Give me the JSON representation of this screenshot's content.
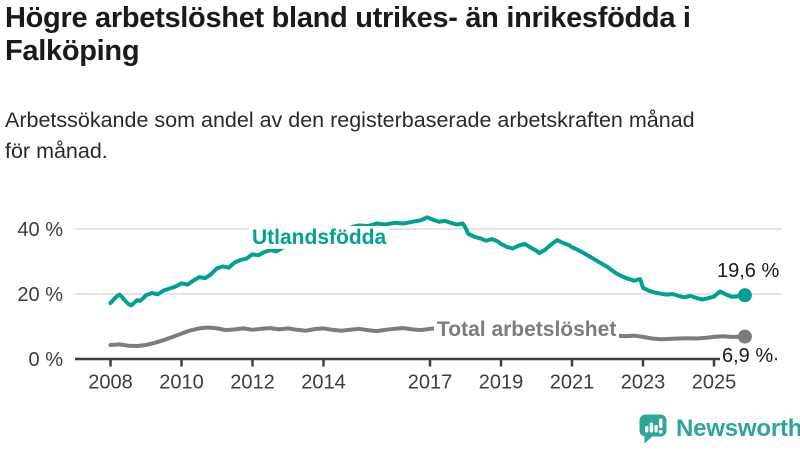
{
  "header": {
    "title": "Högre arbetslöshet bland utrikes- än inrikesfödda i Falköping",
    "title_lines": [
      "Högre arbetslöshet bland utrikes- än inrikesfödda i",
      "Falköping"
    ],
    "subtitle": "Arbetssökande som andel av den registerbaserade arbetskraften månad för månad.",
    "subtitle_lines": [
      "Arbetssökande som andel av den registerbaserade arbetskraften månad",
      "för månad."
    ]
  },
  "colors": {
    "teal": "#00a093",
    "gray": "#7c7c7c",
    "axis": "#3d3d3d",
    "gridline": "#dcdcdc",
    "tick_text": "#3d3d3d",
    "brand_teal": "#2da59b"
  },
  "chart_data": {
    "type": "line",
    "unit": "%",
    "grid": "horizontal-only",
    "x_axis": {
      "ticks": [
        2008,
        2010,
        2012,
        2014,
        2017,
        2019,
        2021,
        2023,
        2025
      ],
      "range": [
        2008,
        2025.87
      ]
    },
    "y_axis": {
      "tick_values": [
        0,
        20,
        40
      ],
      "tick_labels": [
        "0 %",
        "20 %",
        "40 %"
      ],
      "gridlines": [
        20,
        40
      ],
      "range": [
        0,
        45
      ]
    },
    "series": [
      {
        "key": "utlandsfodda",
        "name": "Utlandsfödda",
        "color": "#00a093",
        "end_label": "19,6 %",
        "end_value": 19.6,
        "points": [
          [
            2008.0,
            17.2
          ],
          [
            2008.08,
            18.2
          ],
          [
            2008.17,
            19.2
          ],
          [
            2008.25,
            19.8
          ],
          [
            2008.33,
            19.0
          ],
          [
            2008.42,
            17.8
          ],
          [
            2008.5,
            17.0
          ],
          [
            2008.58,
            16.5
          ],
          [
            2008.67,
            17.3
          ],
          [
            2008.75,
            18.1
          ],
          [
            2008.83,
            17.9
          ],
          [
            2008.92,
            18.7
          ],
          [
            2009.0,
            19.6
          ],
          [
            2009.17,
            20.3
          ],
          [
            2009.33,
            19.9
          ],
          [
            2009.5,
            21.1
          ],
          [
            2009.67,
            21.7
          ],
          [
            2009.83,
            22.3
          ],
          [
            2010.0,
            23.3
          ],
          [
            2010.17,
            22.9
          ],
          [
            2010.33,
            24.1
          ],
          [
            2010.5,
            25.2
          ],
          [
            2010.67,
            24.9
          ],
          [
            2010.83,
            26.1
          ],
          [
            2011.0,
            27.9
          ],
          [
            2011.17,
            28.5
          ],
          [
            2011.33,
            28.1
          ],
          [
            2011.5,
            29.7
          ],
          [
            2011.67,
            30.5
          ],
          [
            2011.83,
            30.9
          ],
          [
            2012.0,
            32.2
          ],
          [
            2012.17,
            31.9
          ],
          [
            2012.33,
            32.9
          ],
          [
            2012.5,
            33.5
          ],
          [
            2012.67,
            33.1
          ],
          [
            2012.83,
            34.1
          ],
          [
            2013.0,
            34.9
          ],
          [
            2013.17,
            35.5
          ],
          [
            2013.33,
            35.1
          ],
          [
            2013.5,
            36.3
          ],
          [
            2013.67,
            36.9
          ],
          [
            2013.83,
            37.5
          ],
          [
            2014.0,
            38.3
          ],
          [
            2014.17,
            37.9
          ],
          [
            2014.33,
            38.9
          ],
          [
            2014.5,
            40.1
          ],
          [
            2014.67,
            39.9
          ],
          [
            2014.83,
            40.7
          ],
          [
            2015.0,
            41.1
          ],
          [
            2015.25,
            40.9
          ],
          [
            2015.5,
            41.7
          ],
          [
            2015.75,
            41.4
          ],
          [
            2016.0,
            41.9
          ],
          [
            2016.25,
            41.7
          ],
          [
            2016.5,
            42.2
          ],
          [
            2016.75,
            42.7
          ],
          [
            2016.92,
            43.6
          ],
          [
            2017.08,
            42.9
          ],
          [
            2017.25,
            42.2
          ],
          [
            2017.42,
            42.5
          ],
          [
            2017.58,
            41.9
          ],
          [
            2017.75,
            41.4
          ],
          [
            2017.92,
            41.7
          ],
          [
            2018.0,
            40.4
          ],
          [
            2018.08,
            38.5
          ],
          [
            2018.25,
            37.6
          ],
          [
            2018.42,
            37.1
          ],
          [
            2018.58,
            36.4
          ],
          [
            2018.75,
            36.9
          ],
          [
            2018.92,
            36.1
          ],
          [
            2019.0,
            35.4
          ],
          [
            2019.17,
            34.5
          ],
          [
            2019.33,
            34.0
          ],
          [
            2019.5,
            34.9
          ],
          [
            2019.67,
            35.4
          ],
          [
            2019.83,
            34.3
          ],
          [
            2020.0,
            33.3
          ],
          [
            2020.08,
            32.6
          ],
          [
            2020.25,
            33.7
          ],
          [
            2020.42,
            35.3
          ],
          [
            2020.58,
            36.6
          ],
          [
            2020.75,
            35.7
          ],
          [
            2020.92,
            35.0
          ],
          [
            2021.0,
            34.4
          ],
          [
            2021.25,
            33.1
          ],
          [
            2021.5,
            31.5
          ],
          [
            2021.75,
            29.9
          ],
          [
            2022.0,
            28.3
          ],
          [
            2022.25,
            26.3
          ],
          [
            2022.5,
            25.0
          ],
          [
            2022.75,
            24.1
          ],
          [
            2022.92,
            24.6
          ],
          [
            2023.0,
            21.9
          ],
          [
            2023.17,
            21.0
          ],
          [
            2023.33,
            20.5
          ],
          [
            2023.5,
            20.1
          ],
          [
            2023.67,
            19.8
          ],
          [
            2023.83,
            20.0
          ],
          [
            2024.0,
            19.4
          ],
          [
            2024.17,
            19.0
          ],
          [
            2024.33,
            19.4
          ],
          [
            2024.5,
            18.8
          ],
          [
            2024.67,
            18.3
          ],
          [
            2024.83,
            18.7
          ],
          [
            2025.0,
            19.2
          ],
          [
            2025.17,
            20.8
          ],
          [
            2025.33,
            19.9
          ],
          [
            2025.5,
            19.1
          ],
          [
            2025.67,
            19.3
          ],
          [
            2025.87,
            19.6
          ]
        ]
      },
      {
        "key": "total",
        "name": "Total arbetslöshet",
        "color": "#7c7c7c",
        "end_label": "6,9 %",
        "end_value": 6.9,
        "points": [
          [
            2008.0,
            4.3
          ],
          [
            2008.25,
            4.5
          ],
          [
            2008.5,
            4.1
          ],
          [
            2008.75,
            4.0
          ],
          [
            2009.0,
            4.3
          ],
          [
            2009.25,
            5.0
          ],
          [
            2009.5,
            5.8
          ],
          [
            2009.75,
            6.8
          ],
          [
            2010.0,
            7.8
          ],
          [
            2010.25,
            8.8
          ],
          [
            2010.5,
            9.4
          ],
          [
            2010.75,
            9.7
          ],
          [
            2011.0,
            9.4
          ],
          [
            2011.25,
            8.9
          ],
          [
            2011.5,
            9.1
          ],
          [
            2011.75,
            9.4
          ],
          [
            2012.0,
            9.0
          ],
          [
            2012.25,
            9.3
          ],
          [
            2012.5,
            9.5
          ],
          [
            2012.75,
            9.1
          ],
          [
            2013.0,
            9.4
          ],
          [
            2013.25,
            9.0
          ],
          [
            2013.5,
            8.7
          ],
          [
            2013.75,
            9.2
          ],
          [
            2014.0,
            9.4
          ],
          [
            2014.25,
            9.0
          ],
          [
            2014.5,
            8.7
          ],
          [
            2014.75,
            9.0
          ],
          [
            2015.0,
            9.3
          ],
          [
            2015.25,
            8.9
          ],
          [
            2015.5,
            8.6
          ],
          [
            2015.75,
            9.0
          ],
          [
            2016.0,
            9.3
          ],
          [
            2016.25,
            9.5
          ],
          [
            2016.5,
            9.1
          ],
          [
            2016.75,
            8.9
          ],
          [
            2017.0,
            9.3
          ],
          [
            2017.25,
            9.5
          ],
          [
            2017.5,
            9.2
          ],
          [
            2017.75,
            9.0
          ],
          [
            2018.0,
            8.8
          ],
          [
            2018.5,
            8.4
          ],
          [
            2019.0,
            8.2
          ],
          [
            2019.5,
            8.0
          ],
          [
            2020.0,
            8.2
          ],
          [
            2020.5,
            9.0
          ],
          [
            2021.0,
            8.6
          ],
          [
            2021.5,
            8.0
          ],
          [
            2022.0,
            7.4
          ],
          [
            2022.5,
            7.0
          ],
          [
            2022.75,
            7.2
          ],
          [
            2023.0,
            6.8
          ],
          [
            2023.25,
            6.3
          ],
          [
            2023.5,
            6.1
          ],
          [
            2023.75,
            6.2
          ],
          [
            2024.0,
            6.3
          ],
          [
            2024.25,
            6.4
          ],
          [
            2024.5,
            6.3
          ],
          [
            2024.75,
            6.5
          ],
          [
            2025.0,
            6.8
          ],
          [
            2025.25,
            7.0
          ],
          [
            2025.5,
            6.8
          ],
          [
            2025.87,
            6.9
          ]
        ]
      }
    ]
  },
  "footer": {
    "brand": "Newsworthy"
  }
}
